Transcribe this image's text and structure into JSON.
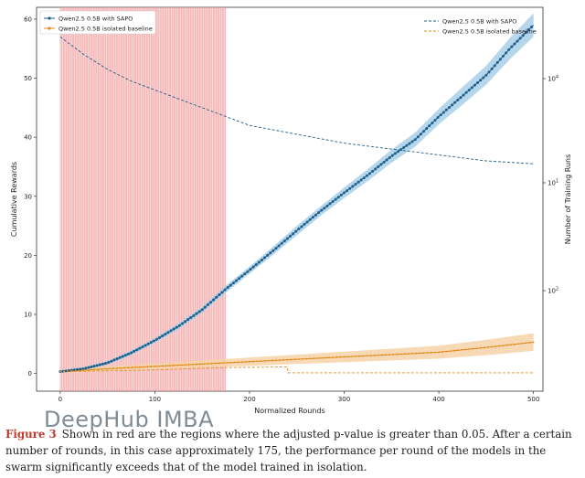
{
  "watermark": "DeepHub IMBA",
  "caption": {
    "label": "Figure 3",
    "text": "Shown in red are the regions where the adjusted p-value is greater than 0.05. After a certain number of rounds, in this case approximately 175, the performance per round of the models in the swarm significantly exceeds that of the model trained in isolation."
  },
  "colors": {
    "sapo": "#1f5f8b",
    "sapo_band": "#a9cfe8",
    "baseline": "#e08a1e",
    "baseline_band": "#f6d3a8",
    "red_region": "#f4a6a6",
    "red_line": "#ee8c8c"
  },
  "chart_data": {
    "type": "line",
    "xlabel": "Normalized Rounds",
    "ylabel": "Cumulative Rewards",
    "y2label": "Number of Training Runs",
    "xlim": [
      -25,
      510
    ],
    "ylim": [
      -3,
      62
    ],
    "y2_scale": "log",
    "x_ticks": [
      "0",
      "100",
      "200",
      "300",
      "400",
      "500"
    ],
    "y_ticks": [
      "0",
      "10",
      "20",
      "30",
      "40",
      "50",
      "60"
    ],
    "y2_ticks": [
      "10^1",
      "10^2",
      "10^4"
    ],
    "legend_left": {
      "placement": "top-left",
      "entries": [
        "Qwen2.5 0.5B with SAPO",
        "Qwen2.5 0.5B isolated baseline"
      ]
    },
    "legend_right": {
      "placement": "top-right",
      "entries": [
        "Qwen2.5 0.5B with SAPO",
        "Qwen2.5 0.5B isolated baseline"
      ]
    },
    "significance_region": {
      "x_start": 0,
      "x_end": 175
    },
    "series": [
      {
        "name": "Qwen2.5 0.5B with SAPO",
        "kind": "marker-line",
        "x": [
          0,
          25,
          50,
          75,
          100,
          125,
          150,
          175,
          200,
          225,
          250,
          275,
          300,
          325,
          350,
          375,
          400,
          425,
          450,
          475,
          500
        ],
        "values": [
          0.3,
          0.8,
          1.8,
          3.5,
          5.6,
          8.0,
          10.8,
          14.3,
          17.5,
          20.8,
          24.2,
          27.5,
          30.6,
          33.6,
          36.8,
          39.6,
          43.5,
          47.0,
          50.5,
          55.0,
          59.0
        ],
        "band": [
          0.2,
          0.3,
          0.3,
          0.4,
          0.4,
          0.5,
          0.5,
          0.6,
          0.6,
          0.7,
          0.8,
          0.8,
          0.9,
          1.0,
          1.1,
          1.2,
          1.3,
          1.5,
          1.6,
          1.8,
          2.0
        ]
      },
      {
        "name": "Qwen2.5 0.5B isolated baseline",
        "kind": "marker-line",
        "x": [
          0,
          50,
          100,
          150,
          200,
          250,
          300,
          350,
          400,
          450,
          500
        ],
        "values": [
          0.3,
          0.8,
          1.2,
          1.6,
          2.0,
          2.4,
          2.8,
          3.2,
          3.6,
          4.4,
          5.3
        ],
        "band": [
          0.2,
          0.4,
          0.5,
          0.6,
          0.7,
          0.8,
          0.9,
          1.0,
          1.1,
          1.3,
          1.5
        ]
      },
      {
        "name": "Qwen2.5 0.5B with SAPO",
        "kind": "dashed",
        "x": [
          0,
          25,
          50,
          75,
          100,
          125,
          150,
          175,
          200,
          250,
          300,
          350,
          400,
          450,
          500
        ],
        "values": [
          57.0,
          54.0,
          51.5,
          49.5,
          48.0,
          46.5,
          45.0,
          43.5,
          42.0,
          40.5,
          39.0,
          38.0,
          37.0,
          36.0,
          35.5
        ]
      },
      {
        "name": "Qwen2.5 0.5B isolated baseline",
        "kind": "dashed",
        "x": [
          0,
          100,
          175,
          240,
          240.5,
          500
        ],
        "values": [
          0.3,
          0.6,
          1.0,
          1.1,
          0.1,
          0.1
        ]
      }
    ]
  }
}
